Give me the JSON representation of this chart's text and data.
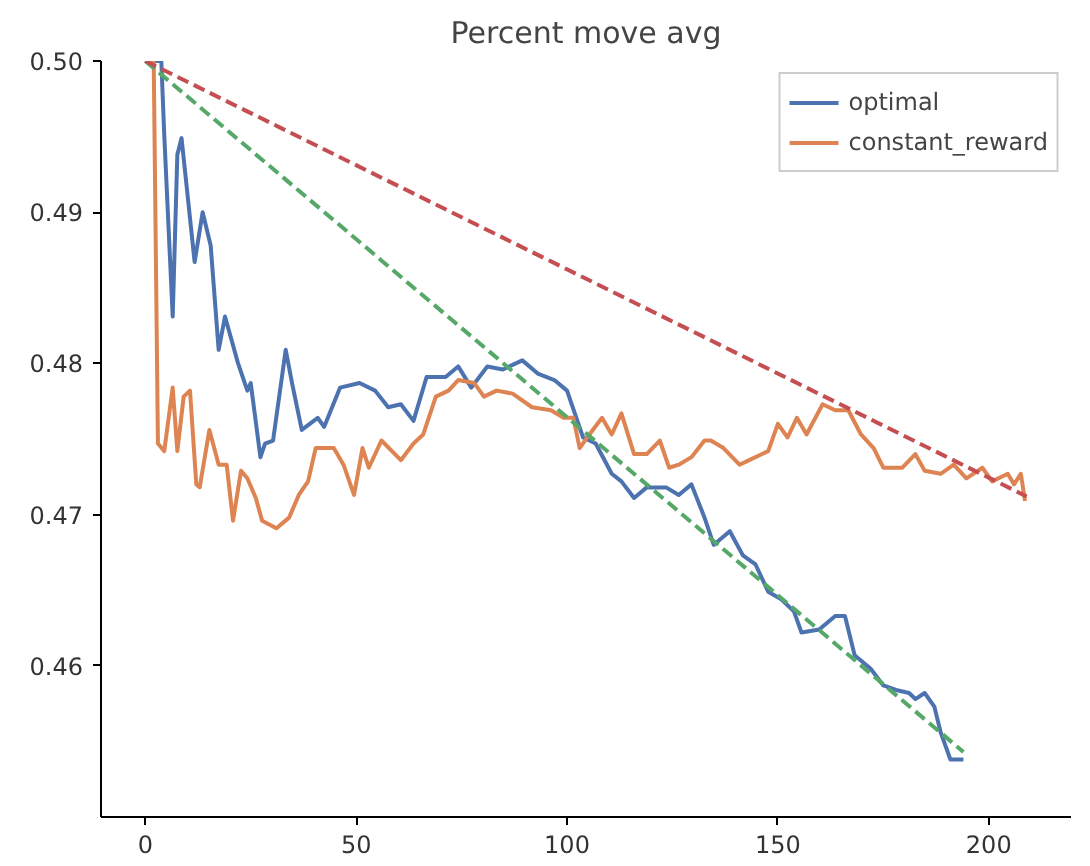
{
  "chart_data": {
    "type": "line",
    "title": "Percent move avg",
    "xlim": [
      -10.5,
      219.5
    ],
    "ylim": [
      0.45,
      0.5
    ],
    "xticks": [
      0,
      50,
      100,
      150,
      200
    ],
    "yticks": [
      0.46,
      0.47,
      0.48,
      0.49,
      {
        "value": 0.5,
        "label": "0.50"
      }
    ],
    "grid": false,
    "legend": "top right",
    "marker": "none",
    "line_style": "solid",
    "series": [
      {
        "name": "optimal",
        "color": "#4c72b0",
        "x": [
          0,
          3.8,
          4.5,
          6.5,
          7.6,
          8.6,
          11.7,
          13.6,
          15.5,
          17.4,
          18.9,
          22,
          24.2,
          25,
          27.3,
          28.4,
          30.3,
          33.3,
          34.8,
          37.1,
          40.9,
          42.4,
          46.2,
          50.8,
          54.5,
          57.6,
          60.6,
          63.6,
          66.7,
          71.2,
          74.2,
          77.3,
          81.1,
          84.8,
          89.4,
          93.2,
          97,
          100,
          103.8,
          106.8,
          110.6,
          112.9,
          115.9,
          118.9,
          123.5,
          126.5,
          129.5,
          132.6,
          134.8,
          138.6,
          141.7,
          144.7,
          147.7,
          150.8,
          153.8,
          155.6,
          159.8,
          163.6,
          165.9,
          168.2,
          172,
          175,
          178,
          181.1,
          182.6,
          184.8,
          187.1,
          188.6,
          190.9,
          194
        ],
        "values": [
          0.5,
          0.5,
          0.4951,
          0.4831,
          0.4938,
          0.4949,
          0.4867,
          0.49,
          0.4878,
          0.4809,
          0.4831,
          0.48,
          0.4782,
          0.4787,
          0.4738,
          0.4747,
          0.4749,
          0.4809,
          0.4787,
          0.4756,
          0.4764,
          0.4758,
          0.4784,
          0.4787,
          0.4782,
          0.4771,
          0.4773,
          0.4762,
          0.4791,
          0.4791,
          0.4798,
          0.4784,
          0.4798,
          0.4796,
          0.4802,
          0.4793,
          0.4789,
          0.4782,
          0.4751,
          0.4747,
          0.4727,
          0.4722,
          0.4711,
          0.4718,
          0.4718,
          0.4713,
          0.472,
          0.4698,
          0.468,
          0.4689,
          0.4673,
          0.4667,
          0.4649,
          0.4644,
          0.4636,
          0.4622,
          0.4624,
          0.4633,
          0.4633,
          0.4607,
          0.4598,
          0.4587,
          0.4584,
          0.4582,
          0.4578,
          0.4582,
          0.4573,
          0.4556,
          0.4538,
          0.4538
        ]
      },
      {
        "name": "constant_reward",
        "color": "#dd8452",
        "x": [
          0,
          2,
          3,
          4.5,
          6.5,
          7.6,
          9.1,
          10.6,
          12.1,
          12.9,
          15.2,
          17.4,
          19.3,
          20.8,
          22.7,
          24.2,
          26.2,
          27.7,
          31.1,
          34.1,
          36.4,
          38.6,
          40.4,
          42.4,
          44.7,
          47,
          49.5,
          51.5,
          53,
          56,
          60.6,
          63.6,
          65.9,
          68.9,
          71.9,
          74.2,
          78,
          80.3,
          83.3,
          87.1,
          91.7,
          96.2,
          99.2,
          101.5,
          103,
          105.3,
          108.3,
          110.6,
          112.9,
          115.9,
          118.9,
          122,
          124.2,
          126.5,
          129.5,
          132.6,
          134.1,
          137.1,
          140.9,
          143.2,
          147.7,
          150,
          152.3,
          154.5,
          156.8,
          160.6,
          163.6,
          166.7,
          169.7,
          172.7,
          175,
          179.5,
          182.6,
          184.8,
          188.6,
          191.7,
          194.7,
          198.5,
          200.8,
          204.5,
          206,
          207.6,
          208.6
        ],
        "values": [
          0.5,
          0.5,
          0.4747,
          0.4742,
          0.4784,
          0.4742,
          0.4778,
          0.4782,
          0.472,
          0.4718,
          0.4756,
          0.4733,
          0.4733,
          0.4696,
          0.4729,
          0.4724,
          0.4711,
          0.4696,
          0.4691,
          0.4698,
          0.4713,
          0.4722,
          0.4744,
          0.4744,
          0.4744,
          0.4733,
          0.4713,
          0.4744,
          0.4731,
          0.4749,
          0.4736,
          0.4747,
          0.4753,
          0.4778,
          0.4782,
          0.4789,
          0.4787,
          0.4778,
          0.4782,
          0.478,
          0.4771,
          0.4769,
          0.4764,
          0.4764,
          0.4744,
          0.4753,
          0.4764,
          0.4753,
          0.4767,
          0.474,
          0.474,
          0.4749,
          0.4731,
          0.4733,
          0.4738,
          0.4749,
          0.4749,
          0.4744,
          0.4733,
          0.4736,
          0.4742,
          0.476,
          0.4751,
          0.4764,
          0.4753,
          0.4773,
          0.4769,
          0.4769,
          0.4753,
          0.4744,
          0.4731,
          0.4731,
          0.474,
          0.4729,
          0.4727,
          0.4733,
          0.4724,
          0.4731,
          0.4722,
          0.4727,
          0.472,
          0.4727,
          0.4709
        ]
      },
      {
        "color": "#55a868",
        "line_style": "dashed",
        "x": [
          0,
          194
        ],
        "values": [
          0.5,
          0.4543
        ]
      },
      {
        "color": "#c44e52",
        "line_style": "dashed",
        "x": [
          0,
          209
        ],
        "values": [
          0.5,
          0.4712
        ]
      }
    ]
  }
}
